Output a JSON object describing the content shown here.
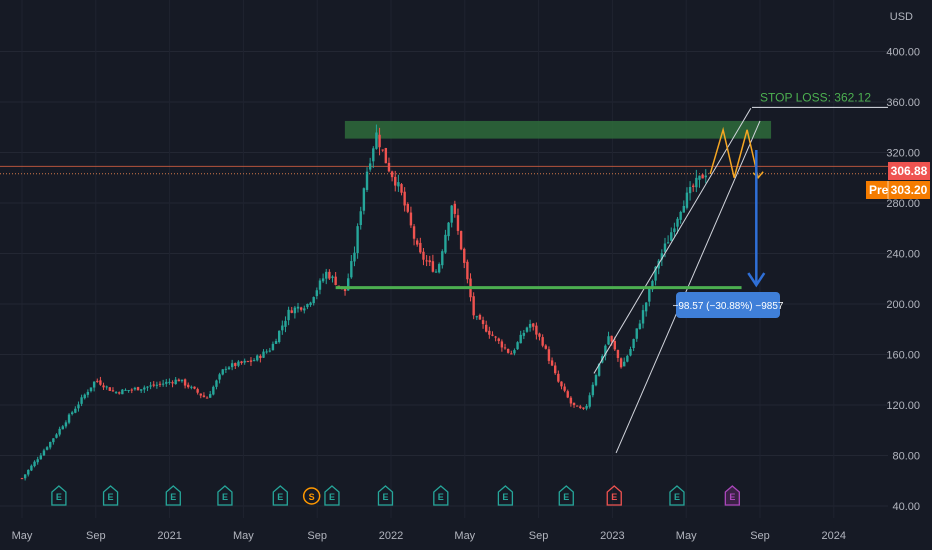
{
  "chart_data": {
    "type": "candlestick",
    "currency": "USD",
    "ylim": [
      40,
      420
    ],
    "y_ticks": [
      40,
      80,
      120,
      160,
      200,
      240,
      280,
      320,
      360,
      400
    ],
    "y_tick_labels": [
      "40.00",
      "80.00",
      "120.00",
      "160.00",
      "200.00",
      "240.00",
      "280.00",
      "320.00",
      "360.00",
      "400.00"
    ],
    "x_ticks": [
      {
        "label": "May",
        "t": 0.0
      },
      {
        "label": "Sep",
        "t": 4.0
      },
      {
        "label": "2021",
        "t": 8.0
      },
      {
        "label": "May",
        "t": 12.0
      },
      {
        "label": "Sep",
        "t": 16.0
      },
      {
        "label": "2022",
        "t": 20.0
      },
      {
        "label": "May",
        "t": 24.0
      },
      {
        "label": "Sep",
        "t": 28.0
      },
      {
        "label": "2023",
        "t": 32.0
      },
      {
        "label": "May",
        "t": 36.0
      },
      {
        "label": "Sep",
        "t": 40.0
      },
      {
        "label": "2024",
        "t": 44.0
      }
    ],
    "price_path": [
      [
        0.0,
        62
      ],
      [
        1.5,
        90
      ],
      [
        2.5,
        110
      ],
      [
        4.0,
        140
      ],
      [
        5.0,
        130
      ],
      [
        7.0,
        135
      ],
      [
        8.5,
        140
      ],
      [
        10.0,
        125
      ],
      [
        11.0,
        150
      ],
      [
        12.5,
        155
      ],
      [
        13.5,
        165
      ],
      [
        14.5,
        195
      ],
      [
        15.5,
        200
      ],
      [
        16.5,
        225
      ],
      [
        17.5,
        210
      ],
      [
        18.0,
        240
      ],
      [
        18.6,
        300
      ],
      [
        19.2,
        335
      ],
      [
        19.8,
        310
      ],
      [
        20.5,
        290
      ],
      [
        21.5,
        240
      ],
      [
        22.5,
        225
      ],
      [
        23.3,
        280
      ],
      [
        23.8,
        245
      ],
      [
        24.5,
        190
      ],
      [
        25.5,
        175
      ],
      [
        26.5,
        160
      ],
      [
        27.5,
        185
      ],
      [
        28.2,
        170
      ],
      [
        29.0,
        140
      ],
      [
        29.8,
        120
      ],
      [
        30.5,
        115
      ],
      [
        31.0,
        140
      ],
      [
        31.8,
        175
      ],
      [
        32.5,
        150
      ],
      [
        33.0,
        165
      ],
      [
        33.8,
        200
      ],
      [
        34.5,
        235
      ],
      [
        35.0,
        250
      ],
      [
        35.8,
        280
      ],
      [
        36.5,
        295
      ],
      [
        37.2,
        306.88
      ]
    ],
    "current_price": "306.88",
    "premarket_label": "Pre",
    "premarket_price": "303.20",
    "stop_loss_label": "STOP LOSS: 362.12",
    "stop_loss_level": 362.12,
    "resistance_zone": {
      "low": 331,
      "high": 345,
      "t_start": 17.5,
      "t_end": 40.6
    },
    "support_level": {
      "price": 213,
      "t_start": 17.0,
      "t_end": 39.0
    },
    "channel": {
      "lower": {
        "t1": 32.2,
        "p1": 82,
        "t2": 40.0,
        "p2": 345
      },
      "upper": {
        "t1": 31.0,
        "p1": 145,
        "t2": 39.5,
        "p2": 355
      }
    },
    "projection_zigzag": [
      [
        37.3,
        303
      ],
      [
        38.0,
        338
      ],
      [
        38.6,
        300
      ],
      [
        39.3,
        338
      ],
      [
        39.9,
        300
      ]
    ],
    "target_arrow": {
      "t": 39.8,
      "from": 322,
      "to": 215
    },
    "measurement_label": "−98.57 (−30.88%) −9857",
    "events": [
      {
        "t": 2.0,
        "type": "E",
        "color": "green"
      },
      {
        "t": 4.8,
        "type": "E",
        "color": "green"
      },
      {
        "t": 8.2,
        "type": "E",
        "color": "green"
      },
      {
        "t": 11.0,
        "type": "E",
        "color": "green"
      },
      {
        "t": 14.0,
        "type": "E",
        "color": "green"
      },
      {
        "t": 15.7,
        "type": "S",
        "color": "orange"
      },
      {
        "t": 16.8,
        "type": "E",
        "color": "green"
      },
      {
        "t": 19.7,
        "type": "E",
        "color": "green"
      },
      {
        "t": 22.7,
        "type": "E",
        "color": "green"
      },
      {
        "t": 26.2,
        "type": "E",
        "color": "green"
      },
      {
        "t": 29.5,
        "type": "E",
        "color": "green"
      },
      {
        "t": 32.1,
        "type": "E",
        "color": "red"
      },
      {
        "t": 35.5,
        "type": "E",
        "color": "green"
      },
      {
        "t": 38.5,
        "type": "E",
        "color": "purple"
      }
    ],
    "colors": {
      "up": "#26a69a",
      "down": "#ef5350",
      "support": "#4caf50",
      "zone": "#2e6b3b",
      "badge_price": "#ef5350",
      "badge_pre": "#f57c00",
      "measure": "#3f7fd8",
      "projection": "#f5a623"
    }
  }
}
